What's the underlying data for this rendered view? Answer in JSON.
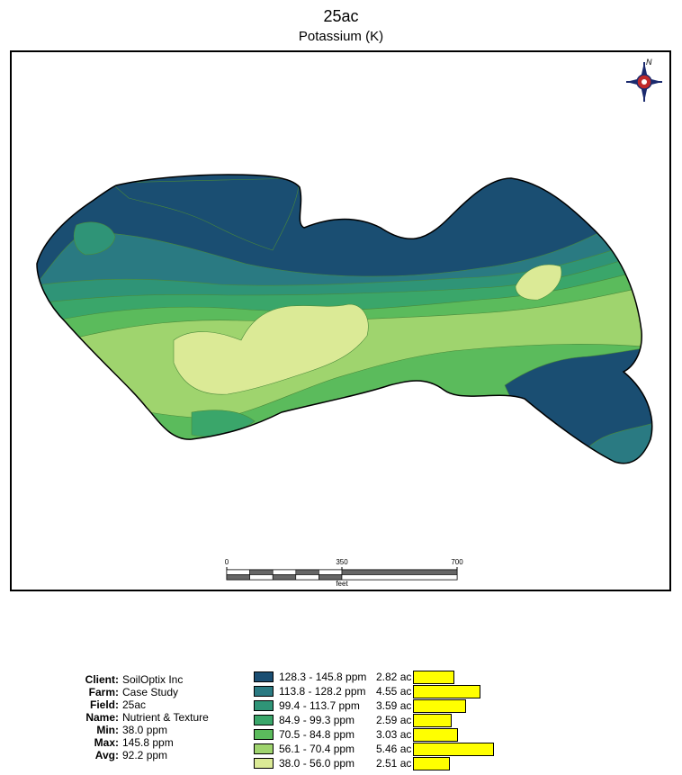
{
  "header": {
    "title": "25ac",
    "subtitle": "Potassium (K)"
  },
  "scale_bar": {
    "labels": [
      "0",
      "350",
      "700"
    ],
    "unit": "feet"
  },
  "icons": {
    "north_arrow": "compass-rose-icon"
  },
  "info": [
    {
      "label": "Client:",
      "value": "SoilOptix Inc"
    },
    {
      "label": "Farm:",
      "value": "Case Study"
    },
    {
      "label": "Field:",
      "value": "25ac"
    },
    {
      "label": "Name:",
      "value": "Nutrient & Texture"
    },
    {
      "label": "Min:",
      "value": "38.0 ppm"
    },
    {
      "label": "Max:",
      "value": "145.8 ppm"
    },
    {
      "label": "Avg:",
      "value": "92.2 ppm"
    }
  ],
  "legend": [
    {
      "range": "128.3 - 145.8 ppm",
      "acres": "2.82 ac",
      "area": 2.82,
      "color": "#1a4e72"
    },
    {
      "range": "113.8 - 128.2 ppm",
      "acres": "4.55 ac",
      "area": 4.55,
      "color": "#2a7a82"
    },
    {
      "range": "99.4 - 113.7 ppm",
      "acres": "3.59 ac",
      "area": 3.59,
      "color": "#2f9477"
    },
    {
      "range": "84.9 - 99.3 ppm",
      "acres": "2.59 ac",
      "area": 2.59,
      "color": "#3aa66a"
    },
    {
      "range": "70.5 - 84.8 ppm",
      "acres": "3.03 ac",
      "area": 3.03,
      "color": "#5bbb5c"
    },
    {
      "range": "56.1 - 70.4 ppm",
      "acres": "5.46 ac",
      "area": 5.46,
      "color": "#9fd46e"
    },
    {
      "range": "38.0 - 56.0 ppm",
      "acres": "2.51 ac",
      "area": 2.51,
      "color": "#dbea96"
    }
  ],
  "colors": {
    "bar": "#ffff00",
    "outline": "#000000"
  }
}
